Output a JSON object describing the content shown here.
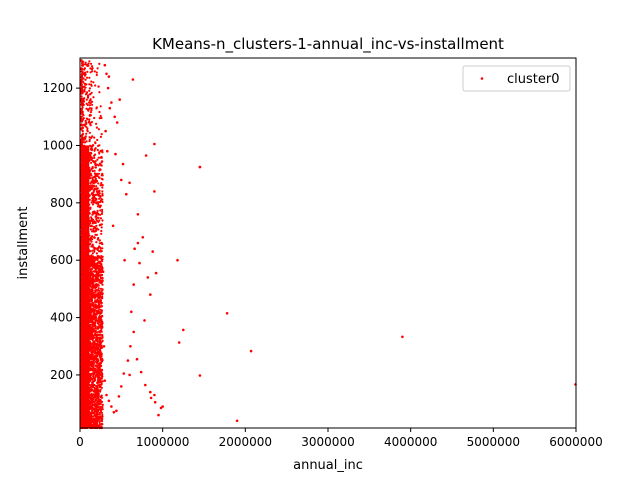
{
  "chart_data": {
    "type": "scatter",
    "title": "KMeans-n_clusters-1-annual_inc-vs-installment",
    "xlabel": "annual_inc",
    "ylabel": "installment",
    "xlim": [
      0,
      6000000
    ],
    "ylim": [
      15,
      1305
    ],
    "xticks": [
      0,
      1000000,
      2000000,
      3000000,
      4000000,
      5000000,
      6000000
    ],
    "xtick_labels": [
      "0",
      "1000000",
      "2000000",
      "3000000",
      "4000000",
      "5000000",
      "6000000"
    ],
    "yticks": [
      200,
      400,
      600,
      800,
      1000,
      1200
    ],
    "ytick_labels": [
      "200",
      "400",
      "600",
      "800",
      "1000",
      "1200"
    ],
    "grid": false,
    "legend": {
      "position": "top-right",
      "entries": [
        "cluster0"
      ]
    },
    "series": [
      {
        "name": "cluster0",
        "color": "#ff0000",
        "x": [
          1450000,
          3900000,
          6000000,
          1780000,
          2070000,
          1250000,
          1200000,
          1450000,
          1900000,
          900000,
          1450000,
          640000,
          900000,
          800000,
          880000,
          1180000,
          850000,
          650000,
          700000,
          920000,
          780000,
          600000,
          500000,
          430000,
          520000,
          600000,
          700000,
          760000,
          820000,
          350000,
          380000,
          420000,
          450000,
          480000,
          540000,
          560000,
          620000,
          660000,
          720000,
          1000000,
          900000,
          950000,
          850000,
          300000,
          320000,
          340000,
          360000,
          310000,
          330000,
          400000,
          260000,
          280000,
          250000,
          270000,
          290000,
          240000,
          300000,
          320000,
          350000,
          380000,
          410000,
          440000,
          470000,
          500000,
          530000,
          580000,
          610000,
          650000,
          690000,
          740000,
          790000,
          860000,
          910000,
          980000
        ],
        "y": [
          925,
          333,
          167,
          415,
          283,
          357,
          313,
          198,
          40,
          1005,
          925,
          1230,
          840,
          965,
          630,
          600,
          480,
          515,
          660,
          555,
          390,
          200,
          880,
          970,
          935,
          870,
          760,
          680,
          540,
          1240,
          1150,
          1100,
          1080,
          1160,
          600,
          830,
          420,
          640,
          590,
          90,
          130,
          60,
          140,
          1280,
          1250,
          1200,
          1130,
          1050,
          980,
          720,
          660,
          560,
          460,
          380,
          300,
          240,
          180,
          130,
          110,
          90,
          70,
          75,
          125,
          160,
          205,
          250,
          300,
          350,
          255,
          210,
          165,
          120,
          105,
          85
        ]
      }
    ]
  }
}
